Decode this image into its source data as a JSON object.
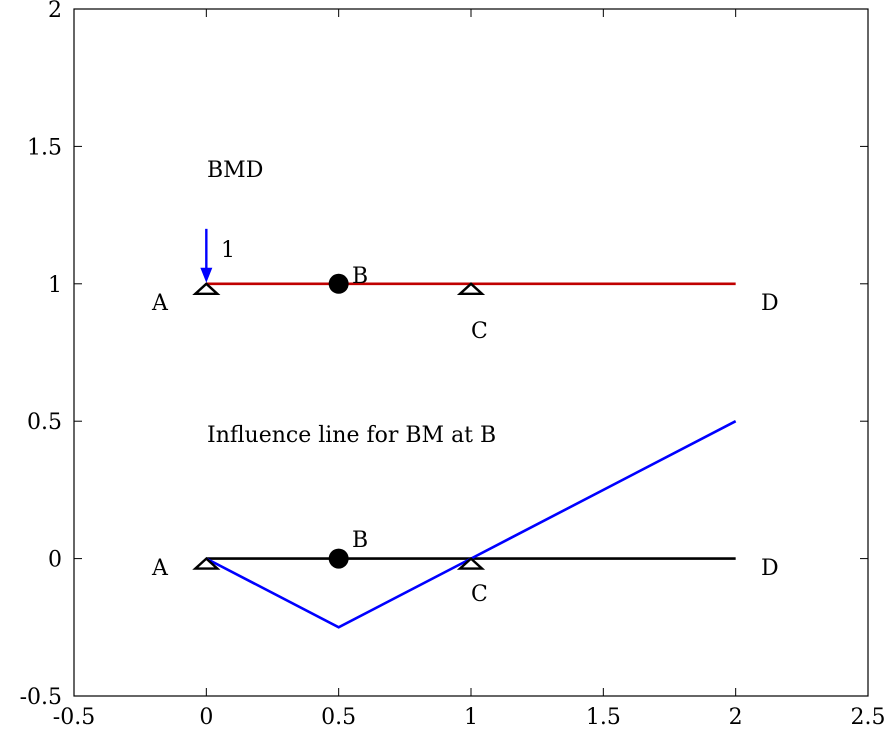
{
  "axes": {
    "xlim": [
      -0.5,
      2.5
    ],
    "ylim": [
      -0.5,
      2
    ],
    "x_ticks": [
      -0.5,
      0,
      0.5,
      1,
      1.5,
      2,
      2.5
    ],
    "y_ticks": [
      -0.5,
      0,
      0.5,
      1,
      1.5,
      2
    ],
    "x_tick_labels": [
      "-0.5",
      "0",
      "0.5",
      "1",
      "1.5",
      "2",
      "2.5"
    ],
    "y_tick_labels": [
      "-0.5",
      "0",
      "0.5",
      "1",
      "1.5",
      "2"
    ]
  },
  "colors": {
    "bmd_beam": "#c00000",
    "influence_line": "#0000ff",
    "load_arrow": "#0000ff",
    "beam": "#000000"
  },
  "chart_data": {
    "type": "line",
    "series": [
      {
        "x": [
          0,
          2
        ],
        "y": [
          1,
          1
        ],
        "color": "#c00000"
      },
      {
        "x": [
          0,
          2
        ],
        "y": [
          0,
          0
        ],
        "color": "#000000"
      },
      {
        "x": [
          0,
          0.5,
          1,
          2
        ],
        "y": [
          0,
          -0.25,
          0,
          0.5
        ],
        "color": "#0000ff"
      }
    ],
    "hinges": [
      {
        "x": 0.5,
        "y": 1
      },
      {
        "x": 0.5,
        "y": 0
      }
    ],
    "supports": [
      {
        "x": 0,
        "y": 1
      },
      {
        "x": 1,
        "y": 1
      },
      {
        "x": 0,
        "y": 0
      },
      {
        "x": 1,
        "y": 0
      }
    ],
    "load_arrow": {
      "x": 0,
      "y_from": 1.2,
      "y_to": 1,
      "label": "1"
    }
  },
  "labels": {
    "bmd_title": "BMD",
    "il_title": "Influence line for BM at B",
    "top": {
      "a": "A",
      "b": "B",
      "c": "C",
      "d": "D"
    },
    "bottom": {
      "a": "A",
      "b": "B",
      "c": "C",
      "d": "D"
    }
  }
}
